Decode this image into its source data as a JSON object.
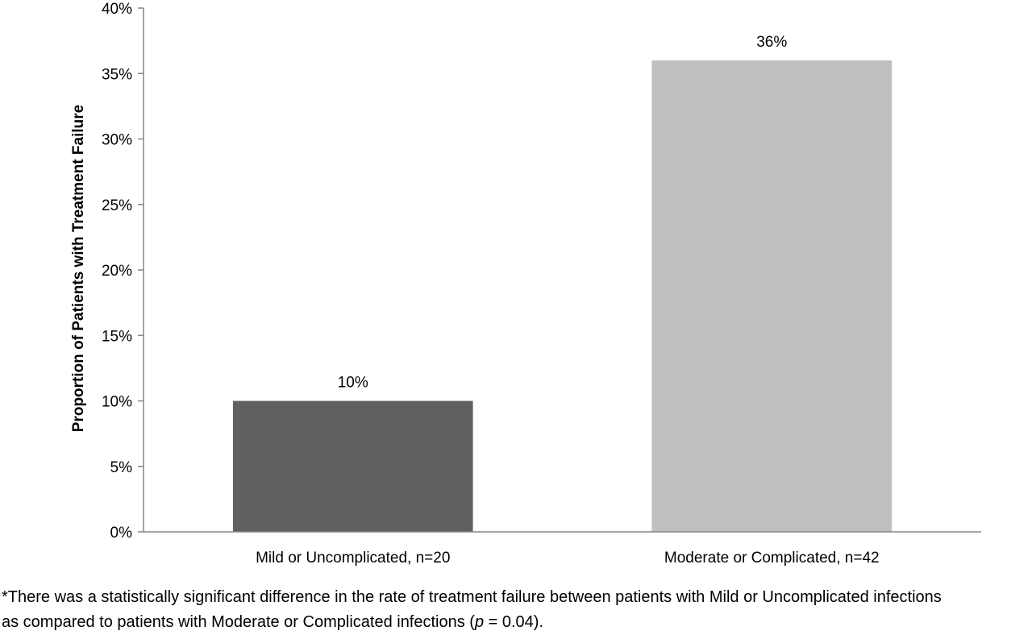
{
  "chart_data": {
    "type": "bar",
    "categories": [
      "Mild or Uncomplicated, n=20",
      "Moderate or Complicated, n=42"
    ],
    "values": [
      10,
      36
    ],
    "value_labels": [
      "10%",
      "36%"
    ],
    "colors": [
      "#606060",
      "#bfbfbf"
    ],
    "ylabel": "Proportion of Patients with Treatment Failure",
    "xlabel": "",
    "ylim": [
      0,
      40
    ],
    "yticks": [
      0,
      5,
      10,
      15,
      20,
      25,
      30,
      35,
      40
    ],
    "ytick_labels": [
      "0%",
      "5%",
      "10%",
      "15%",
      "20%",
      "25%",
      "30%",
      "35%",
      "40%"
    ],
    "grid": false,
    "legend": "none"
  },
  "footnote": {
    "line1": "*There was a statistically significant difference in the rate of treatment failure between patients with Mild or Uncomplicated infections",
    "line2_prefix": "as compared to patients with Moderate or Complicated infections (",
    "line2_p": "p",
    "line2_suffix": " = 0.04)."
  }
}
